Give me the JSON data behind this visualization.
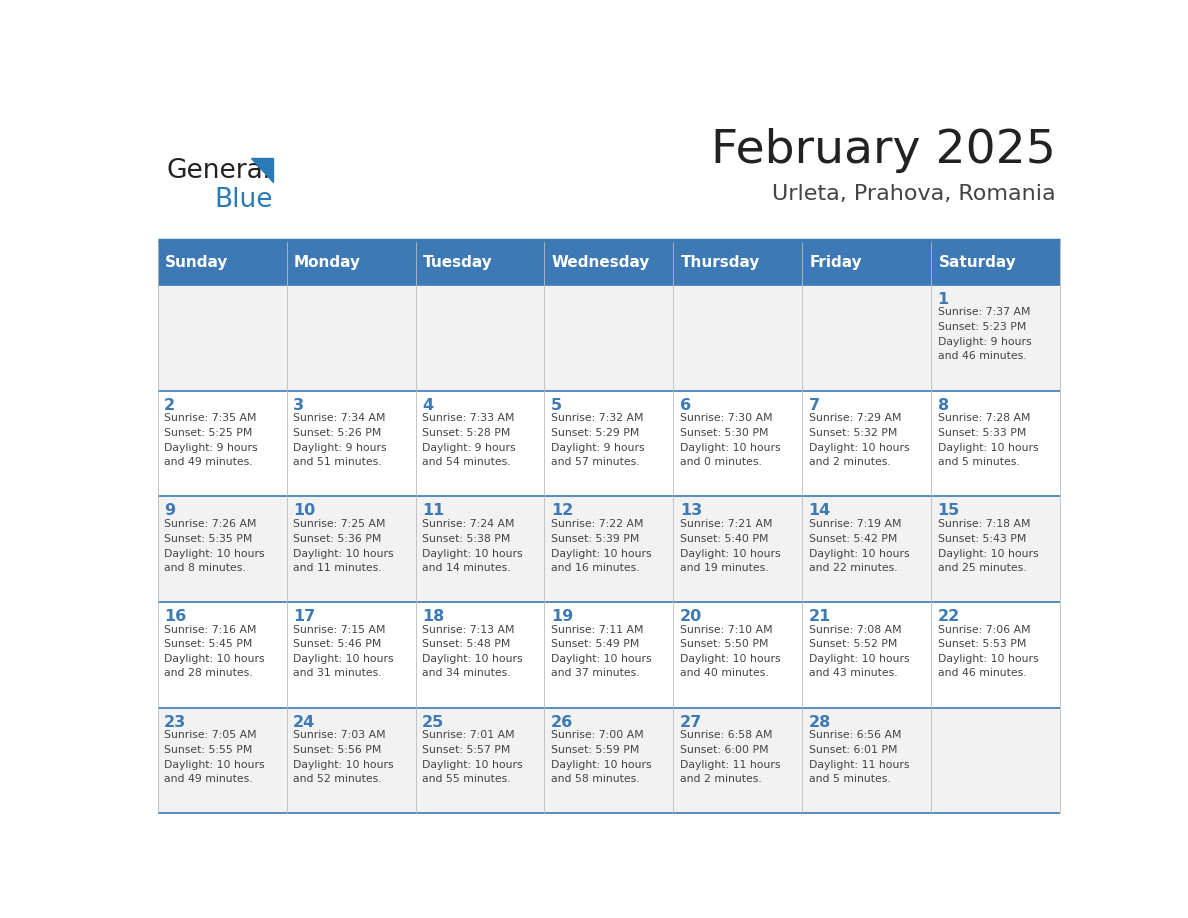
{
  "title": "February 2025",
  "subtitle": "Urleta, Prahova, Romania",
  "days_of_week": [
    "Sunday",
    "Monday",
    "Tuesday",
    "Wednesday",
    "Thursday",
    "Friday",
    "Saturday"
  ],
  "header_bg": "#3d7ab5",
  "header_text": "#ffffff",
  "cell_bg_odd": "#f2f2f2",
  "cell_bg_even": "#ffffff",
  "cell_border": "#3d7ab5",
  "day_number_color": "#3d7ab5",
  "text_color": "#444444",
  "title_color": "#222222",
  "subtitle_color": "#444444",
  "logo_general_color": "#222222",
  "logo_blue_color": "#2a7ab8",
  "calendar_data": [
    {
      "day": 1,
      "col": 6,
      "row": 0,
      "sunrise": "7:37 AM",
      "sunset": "5:23 PM",
      "daylight_h": "9 hours",
      "daylight_m": "46 minutes."
    },
    {
      "day": 2,
      "col": 0,
      "row": 1,
      "sunrise": "7:35 AM",
      "sunset": "5:25 PM",
      "daylight_h": "9 hours",
      "daylight_m": "49 minutes."
    },
    {
      "day": 3,
      "col": 1,
      "row": 1,
      "sunrise": "7:34 AM",
      "sunset": "5:26 PM",
      "daylight_h": "9 hours",
      "daylight_m": "51 minutes."
    },
    {
      "day": 4,
      "col": 2,
      "row": 1,
      "sunrise": "7:33 AM",
      "sunset": "5:28 PM",
      "daylight_h": "9 hours",
      "daylight_m": "54 minutes."
    },
    {
      "day": 5,
      "col": 3,
      "row": 1,
      "sunrise": "7:32 AM",
      "sunset": "5:29 PM",
      "daylight_h": "9 hours",
      "daylight_m": "57 minutes."
    },
    {
      "day": 6,
      "col": 4,
      "row": 1,
      "sunrise": "7:30 AM",
      "sunset": "5:30 PM",
      "daylight_h": "10 hours",
      "daylight_m": "0 minutes."
    },
    {
      "day": 7,
      "col": 5,
      "row": 1,
      "sunrise": "7:29 AM",
      "sunset": "5:32 PM",
      "daylight_h": "10 hours",
      "daylight_m": "2 minutes."
    },
    {
      "day": 8,
      "col": 6,
      "row": 1,
      "sunrise": "7:28 AM",
      "sunset": "5:33 PM",
      "daylight_h": "10 hours",
      "daylight_m": "5 minutes."
    },
    {
      "day": 9,
      "col": 0,
      "row": 2,
      "sunrise": "7:26 AM",
      "sunset": "5:35 PM",
      "daylight_h": "10 hours",
      "daylight_m": "8 minutes."
    },
    {
      "day": 10,
      "col": 1,
      "row": 2,
      "sunrise": "7:25 AM",
      "sunset": "5:36 PM",
      "daylight_h": "10 hours",
      "daylight_m": "11 minutes."
    },
    {
      "day": 11,
      "col": 2,
      "row": 2,
      "sunrise": "7:24 AM",
      "sunset": "5:38 PM",
      "daylight_h": "10 hours",
      "daylight_m": "14 minutes."
    },
    {
      "day": 12,
      "col": 3,
      "row": 2,
      "sunrise": "7:22 AM",
      "sunset": "5:39 PM",
      "daylight_h": "10 hours",
      "daylight_m": "16 minutes."
    },
    {
      "day": 13,
      "col": 4,
      "row": 2,
      "sunrise": "7:21 AM",
      "sunset": "5:40 PM",
      "daylight_h": "10 hours",
      "daylight_m": "19 minutes."
    },
    {
      "day": 14,
      "col": 5,
      "row": 2,
      "sunrise": "7:19 AM",
      "sunset": "5:42 PM",
      "daylight_h": "10 hours",
      "daylight_m": "22 minutes."
    },
    {
      "day": 15,
      "col": 6,
      "row": 2,
      "sunrise": "7:18 AM",
      "sunset": "5:43 PM",
      "daylight_h": "10 hours",
      "daylight_m": "25 minutes."
    },
    {
      "day": 16,
      "col": 0,
      "row": 3,
      "sunrise": "7:16 AM",
      "sunset": "5:45 PM",
      "daylight_h": "10 hours",
      "daylight_m": "28 minutes."
    },
    {
      "day": 17,
      "col": 1,
      "row": 3,
      "sunrise": "7:15 AM",
      "sunset": "5:46 PM",
      "daylight_h": "10 hours",
      "daylight_m": "31 minutes."
    },
    {
      "day": 18,
      "col": 2,
      "row": 3,
      "sunrise": "7:13 AM",
      "sunset": "5:48 PM",
      "daylight_h": "10 hours",
      "daylight_m": "34 minutes."
    },
    {
      "day": 19,
      "col": 3,
      "row": 3,
      "sunrise": "7:11 AM",
      "sunset": "5:49 PM",
      "daylight_h": "10 hours",
      "daylight_m": "37 minutes."
    },
    {
      "day": 20,
      "col": 4,
      "row": 3,
      "sunrise": "7:10 AM",
      "sunset": "5:50 PM",
      "daylight_h": "10 hours",
      "daylight_m": "40 minutes."
    },
    {
      "day": 21,
      "col": 5,
      "row": 3,
      "sunrise": "7:08 AM",
      "sunset": "5:52 PM",
      "daylight_h": "10 hours",
      "daylight_m": "43 minutes."
    },
    {
      "day": 22,
      "col": 6,
      "row": 3,
      "sunrise": "7:06 AM",
      "sunset": "5:53 PM",
      "daylight_h": "10 hours",
      "daylight_m": "46 minutes."
    },
    {
      "day": 23,
      "col": 0,
      "row": 4,
      "sunrise": "7:05 AM",
      "sunset": "5:55 PM",
      "daylight_h": "10 hours",
      "daylight_m": "49 minutes."
    },
    {
      "day": 24,
      "col": 1,
      "row": 4,
      "sunrise": "7:03 AM",
      "sunset": "5:56 PM",
      "daylight_h": "10 hours",
      "daylight_m": "52 minutes."
    },
    {
      "day": 25,
      "col": 2,
      "row": 4,
      "sunrise": "7:01 AM",
      "sunset": "5:57 PM",
      "daylight_h": "10 hours",
      "daylight_m": "55 minutes."
    },
    {
      "day": 26,
      "col": 3,
      "row": 4,
      "sunrise": "7:00 AM",
      "sunset": "5:59 PM",
      "daylight_h": "10 hours",
      "daylight_m": "58 minutes."
    },
    {
      "day": 27,
      "col": 4,
      "row": 4,
      "sunrise": "6:58 AM",
      "sunset": "6:00 PM",
      "daylight_h": "11 hours",
      "daylight_m": "2 minutes."
    },
    {
      "day": 28,
      "col": 5,
      "row": 4,
      "sunrise": "6:56 AM",
      "sunset": "6:01 PM",
      "daylight_h": "11 hours",
      "daylight_m": "5 minutes."
    }
  ]
}
